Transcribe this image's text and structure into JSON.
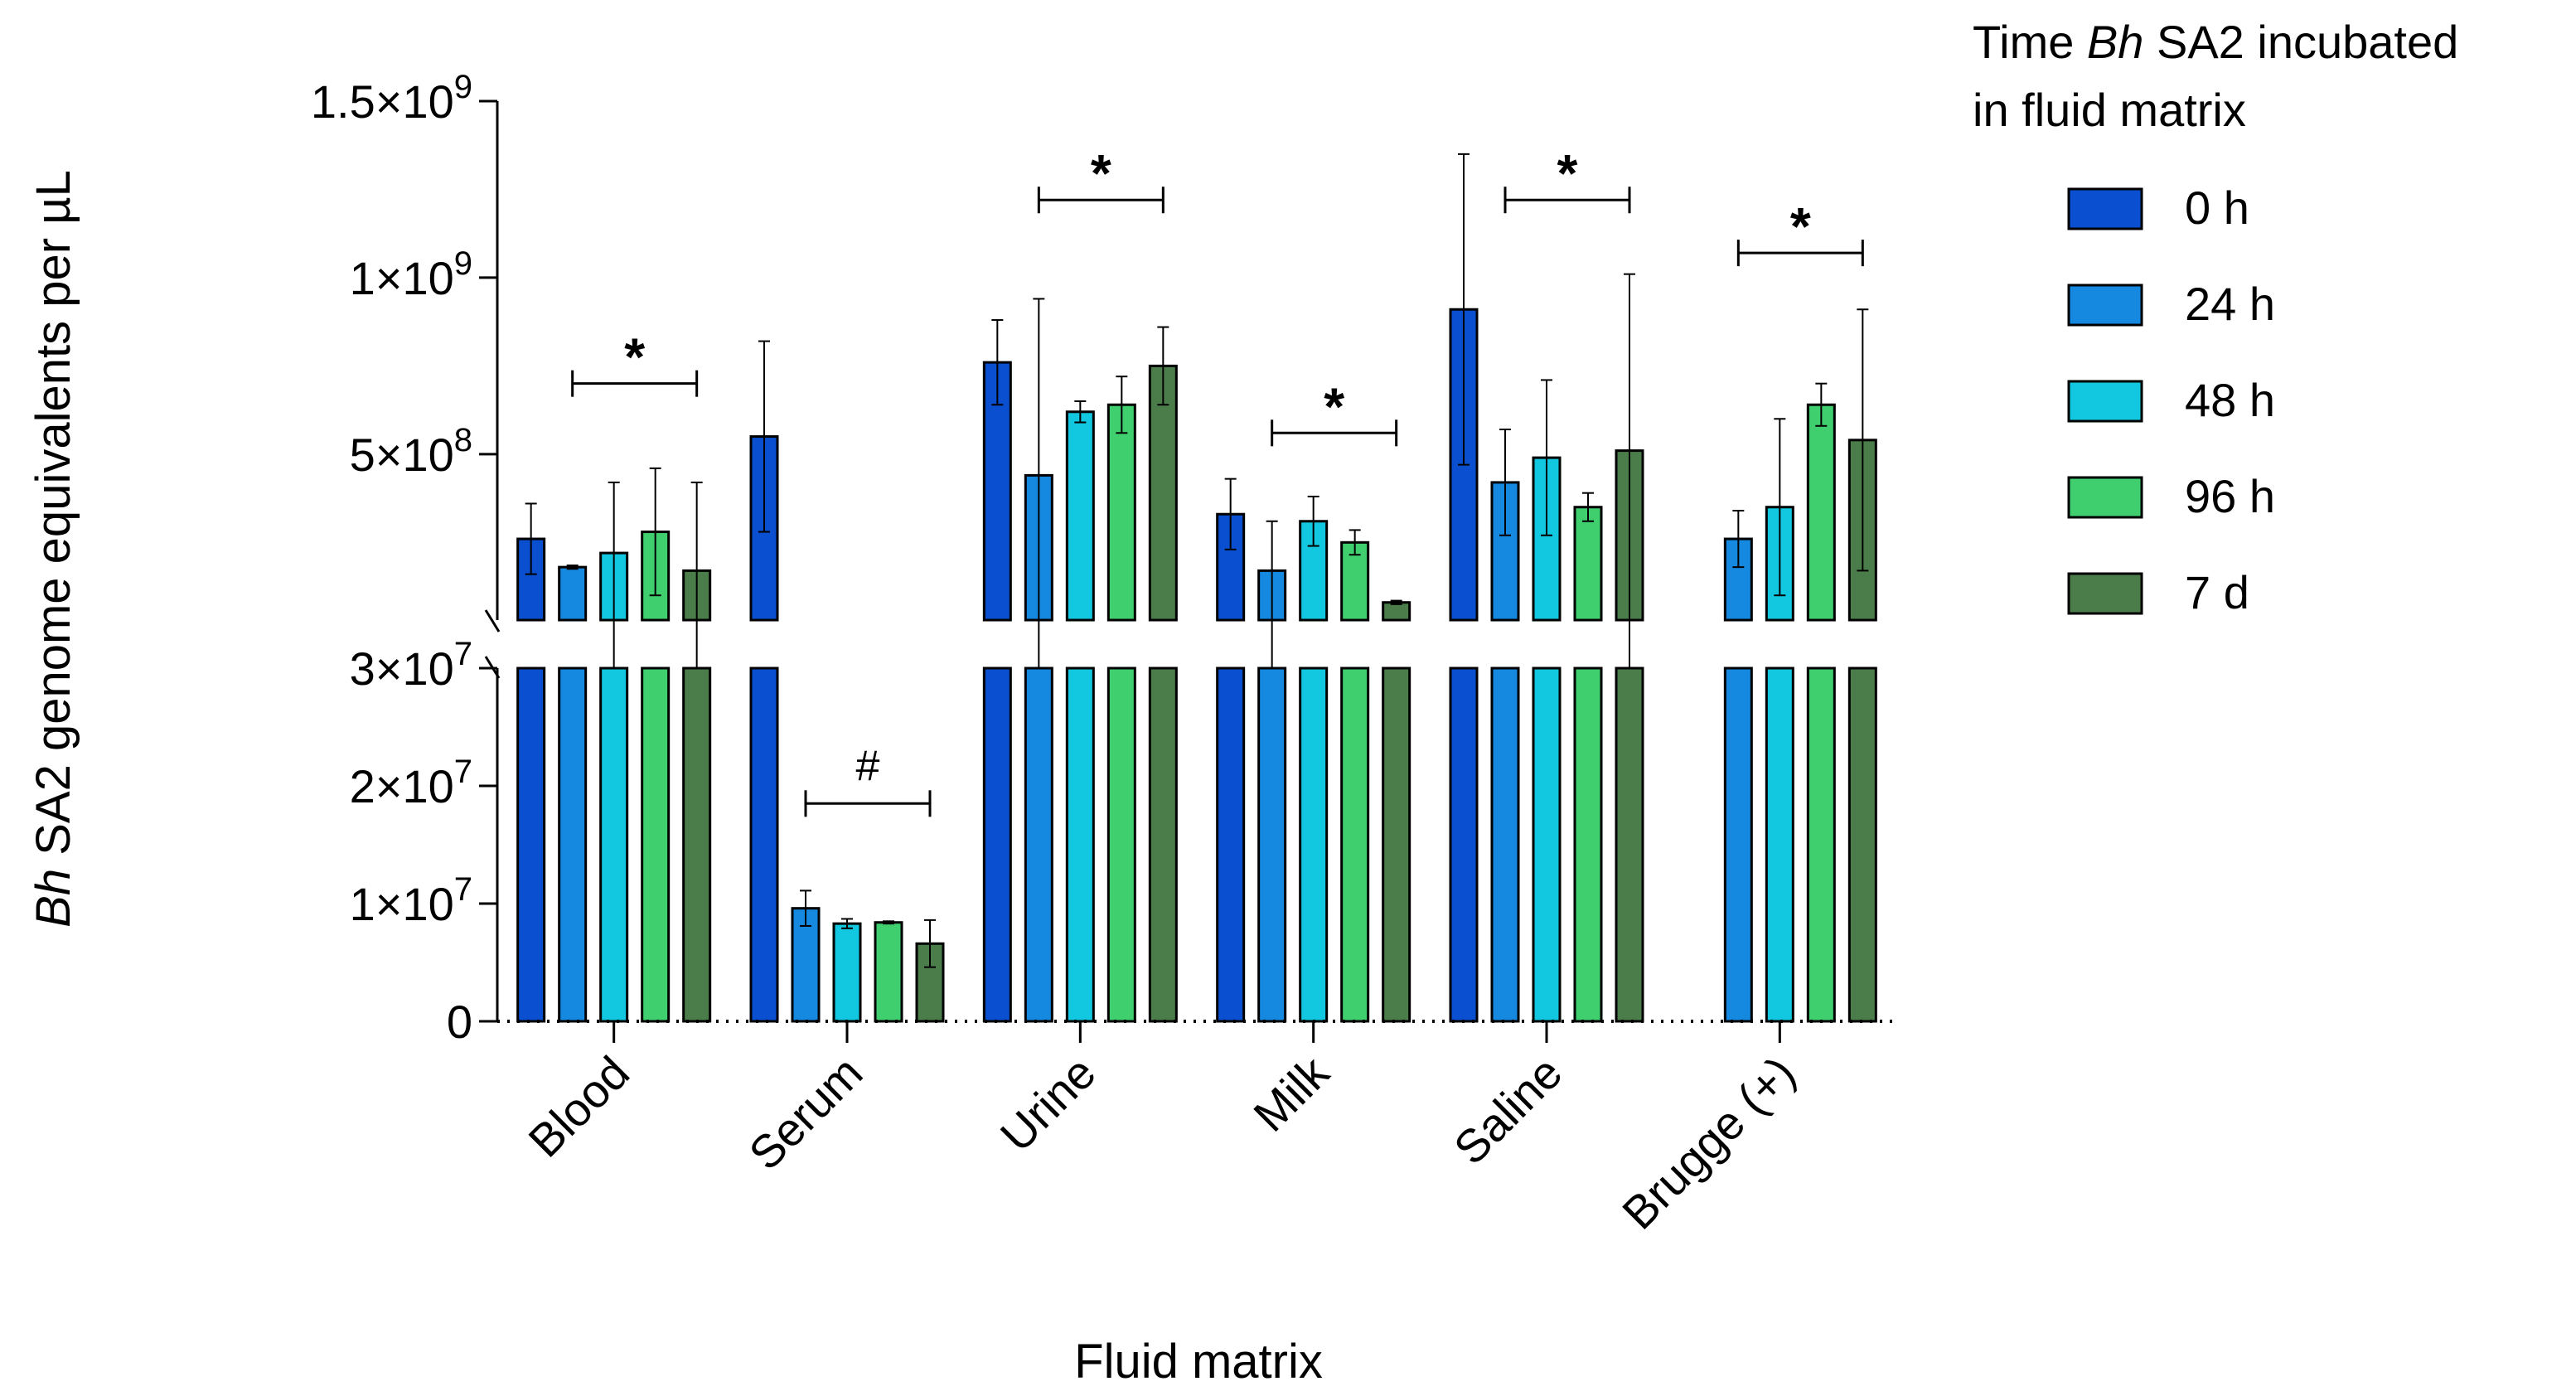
{
  "chart_data": {
    "type": "bar",
    "xlabel": "Fluid matrix",
    "ylabel": {
      "italic": "Bh",
      "rest": " SA2 genome equivalents per µL"
    },
    "legend_title": {
      "line1_pre": "Time ",
      "line1_italic": "Bh",
      "line1_post": " SA2 incubated",
      "line2": "in fluid matrix"
    },
    "legend_placement": "right",
    "grid": false,
    "y_scale": "broken",
    "y_lower_range": [
      0,
      30000000
    ],
    "y_upper_range": [
      30000000,
      1500000000
    ],
    "y_ticks_lower": [
      {
        "value": 0,
        "base": "0",
        "exp": ""
      },
      {
        "value": 10000000,
        "base": "1×10",
        "exp": "7"
      },
      {
        "value": 20000000,
        "base": "2×10",
        "exp": "7"
      },
      {
        "value": 30000000,
        "base": "3×10",
        "exp": "7"
      }
    ],
    "y_ticks_upper": [
      {
        "value": 500000000,
        "base": "5×10",
        "exp": "8"
      },
      {
        "value": 1000000000,
        "base": "1×10",
        "exp": "9"
      },
      {
        "value": 1500000000,
        "base": "1.5×10",
        "exp": "9"
      }
    ],
    "categories": [
      "Blood",
      "Serum",
      "Urine",
      "Milk",
      "Saline",
      "Brugge (+)"
    ],
    "series": [
      {
        "name": "0 h",
        "color": "#0a4fcf",
        "values": [
          260000000,
          550000000,
          760000000,
          330000000,
          910000000,
          null
        ],
        "errors": [
          100000000,
          270000000,
          120000000,
          100000000,
          440000000,
          null
        ]
      },
      {
        "name": "24 h",
        "color": "#1588e0",
        "values": [
          180000000,
          9600000,
          440000000,
          170000000,
          420000000,
          260000000
        ],
        "errors": [
          5000000,
          1500000,
          500000000,
          140000000,
          150000000,
          80000000
        ]
      },
      {
        "name": "48 h",
        "color": "#12c7e0",
        "values": [
          220000000,
          8300000,
          620000000,
          310000000,
          490000000,
          350000000
        ],
        "errors": [
          200000000,
          400000,
          30000000,
          70000000,
          220000000,
          250000000
        ]
      },
      {
        "name": "96 h",
        "color": "#3fcf6e",
        "values": [
          280000000,
          8400000,
          640000000,
          250000000,
          350000000,
          640000000
        ],
        "errors": [
          180000000,
          100000,
          80000000,
          35000000,
          40000000,
          60000000
        ]
      },
      {
        "name": "7 d",
        "color": "#4a7d4a",
        "values": [
          170000000,
          6600000,
          750000000,
          80000000,
          510000000,
          540000000
        ],
        "errors": [
          250000000,
          2000000,
          110000000,
          5000000,
          500000000,
          370000000
        ]
      }
    ],
    "annotations": [
      {
        "category": "Blood",
        "symbol": "*",
        "level": 700000000
      },
      {
        "category": "Serum",
        "symbol": "#",
        "level": 18500000
      },
      {
        "category": "Urine",
        "symbol": "*",
        "level": 1220000000
      },
      {
        "category": "Milk",
        "symbol": "*",
        "level": 560000000
      },
      {
        "category": "Saline",
        "symbol": "*",
        "level": 1220000000
      },
      {
        "category": "Brugge (+)",
        "symbol": "*",
        "level": 1070000000
      }
    ]
  }
}
